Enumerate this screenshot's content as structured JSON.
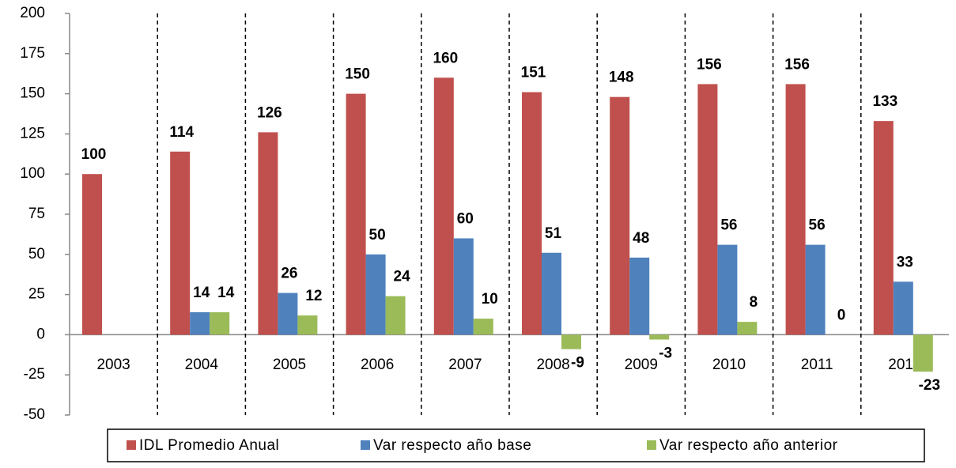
{
  "chart_data": {
    "type": "bar",
    "categories": [
      "2003",
      "2004",
      "2005",
      "2006",
      "2007",
      "2008",
      "2009",
      "2010",
      "2011",
      "2012"
    ],
    "series": [
      {
        "name": "IDL Promedio Anual",
        "color": "#c0504d",
        "values": [
          100,
          114,
          126,
          150,
          160,
          151,
          148,
          156,
          156,
          133
        ]
      },
      {
        "name": "Var respecto año base",
        "color": "#4f81bd",
        "values": [
          null,
          14,
          26,
          50,
          60,
          51,
          48,
          56,
          56,
          33
        ]
      },
      {
        "name": "Var respecto año anterior",
        "color": "#9bbb59",
        "values": [
          null,
          14,
          12,
          24,
          10,
          -9,
          -3,
          8,
          0,
          -23
        ]
      }
    ],
    "ylim": [
      -50,
      200
    ],
    "yticks": [
      -50,
      -25,
      0,
      25,
      50,
      75,
      100,
      125,
      150,
      175,
      200
    ]
  }
}
